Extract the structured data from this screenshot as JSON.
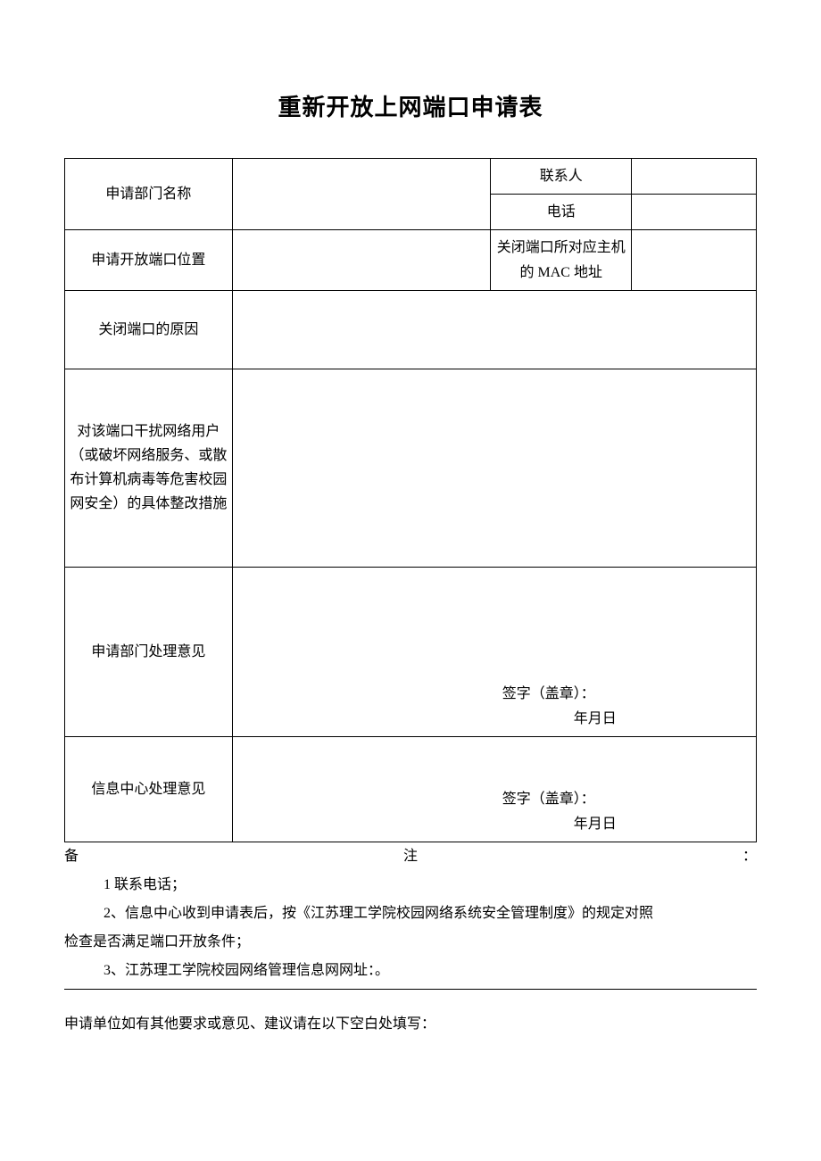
{
  "title": "重新开放上网端口申请表",
  "table": {
    "row1": {
      "label": "申请部门名称",
      "sub1_label": "联系人",
      "sub2_label": "电话"
    },
    "row2": {
      "label": "申请开放端口位置",
      "sub_label": "关闭端口所对应主机的 MAC 地址"
    },
    "row3": {
      "label": "关闭端口的原因"
    },
    "row4": {
      "label": "对该端口干扰网络用户（或破坏网络服务、或散布计算机病毒等危害校园网安全）的具体整改措施"
    },
    "row5": {
      "label": "申请部门处理意见",
      "sig": "签字（盖章）：",
      "date": "年月日"
    },
    "row6": {
      "label": "信息中心处理意见",
      "sig": "签字（盖章）：",
      "date": "年月日"
    }
  },
  "notes": {
    "heading_chars": {
      "c1": "备",
      "c2": "注",
      "c3": "："
    },
    "line1": "1 联系电话；",
    "line2a": "2、信息中心收到申请表后，按《江苏理工学院校园网络系统安全管理制度》的规定对照",
    "line2b": "检查是否满足端口开放条件；",
    "line3": "3、江苏理工学院校园网络管理信息网网址：。"
  },
  "final": "申请单位如有其他要求或意见、建议请在以下空白处填写："
}
